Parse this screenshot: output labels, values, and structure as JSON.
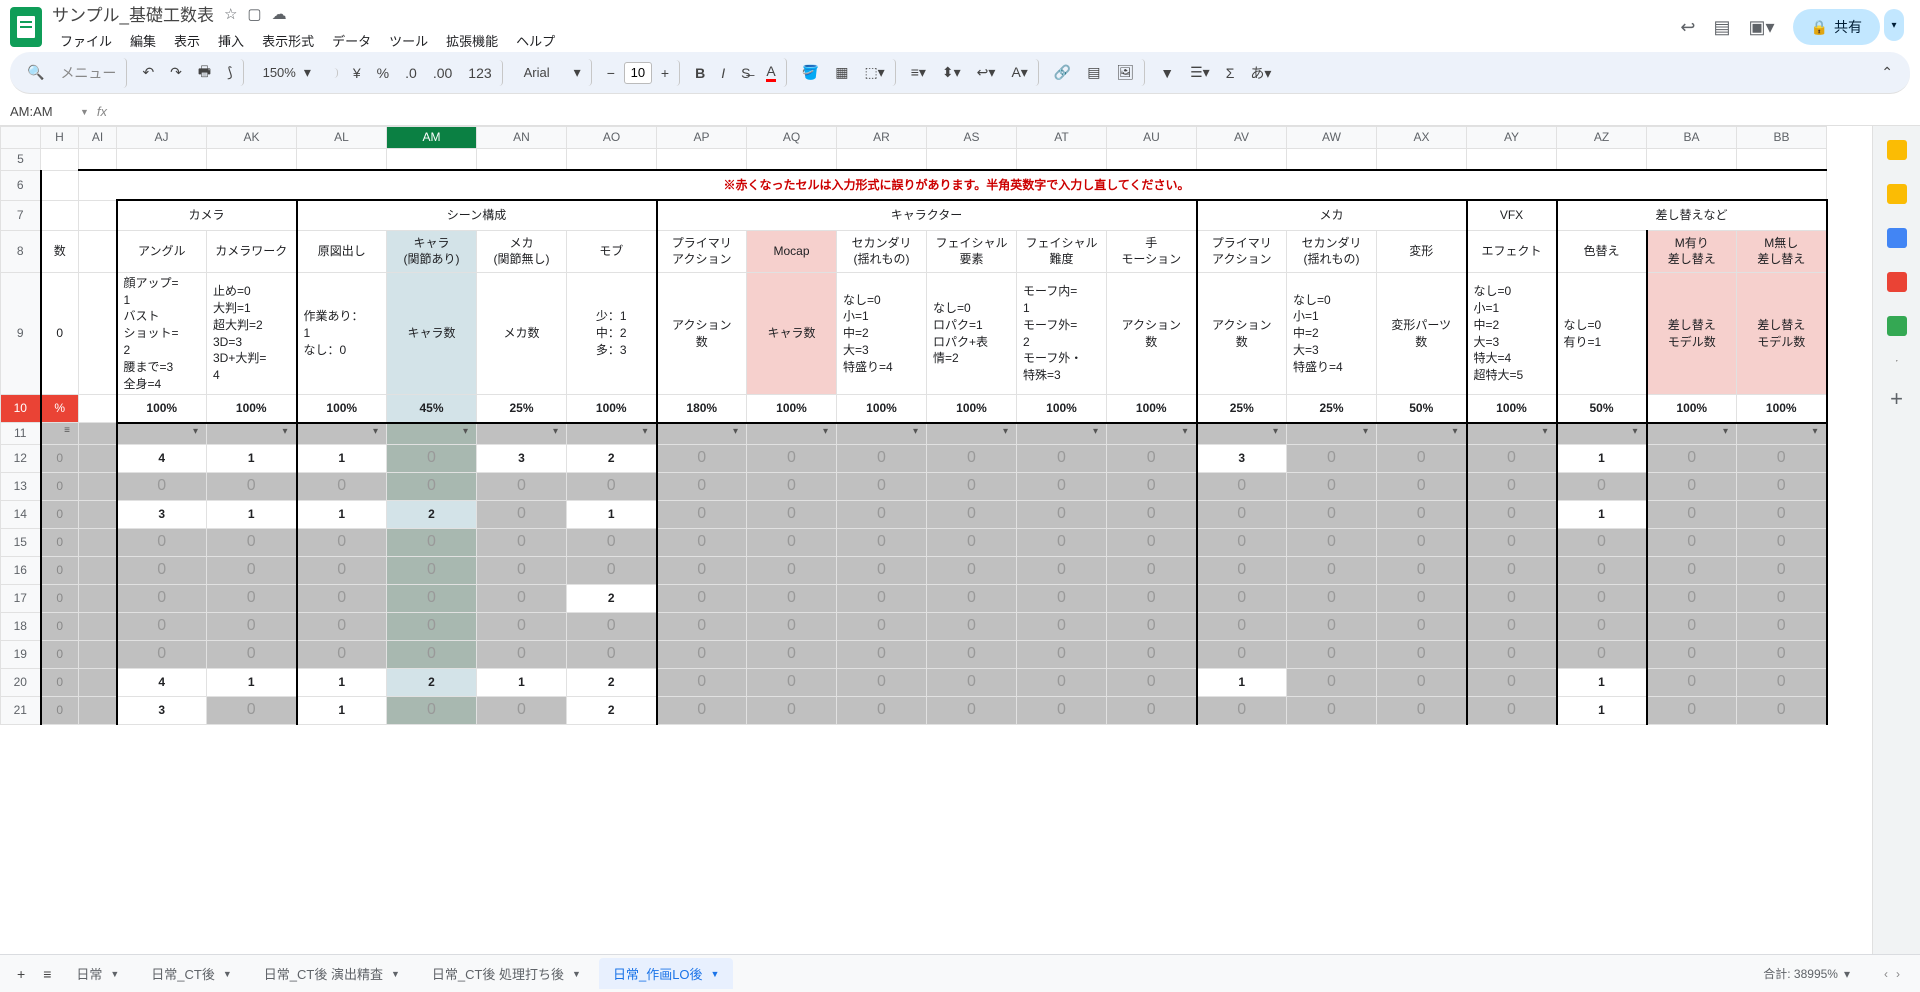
{
  "doc": {
    "title": "サンプル_基礎工数表"
  },
  "menus": [
    "ファイル",
    "編集",
    "表示",
    "挿入",
    "表示形式",
    "データ",
    "ツール",
    "拡張機能",
    "ヘルプ"
  ],
  "toolbar": {
    "menu_label": "メニュー",
    "zoom": "150%",
    "font": "Arial",
    "fontsize": "10"
  },
  "share": {
    "label": "共有"
  },
  "namebox": "AM:AM",
  "cols": [
    "H",
    "AI",
    "AJ",
    "AK",
    "AL",
    "AM",
    "AN",
    "AO",
    "AP",
    "AQ",
    "AR",
    "AS",
    "AT",
    "AU",
    "AV",
    "AW",
    "AX",
    "AY",
    "AZ",
    "BA",
    "BB"
  ],
  "selectedCol": "AM",
  "row5_warn": "※赤くなったセルは入力形式に誤りがあります。半角英数字で入力し直してください。",
  "groups": {
    "camera": "カメラ",
    "scene": "シーン構成",
    "char": "キャラクター",
    "mech": "メカ",
    "vfx": "VFX",
    "swap": "差し替えなど"
  },
  "hdr8": {
    "AJ": "アングル",
    "AK": "カメラワーク",
    "AL": "原図出し",
    "AM": "キャラ\n(関節あり)",
    "AN": "メカ\n(関節無し)",
    "AO": "モブ",
    "AP": "プライマリ\nアクション",
    "AQ": "Mocap",
    "AR": "セカンダリ\n(揺れもの)",
    "AS": "フェイシャル\n要素",
    "AT": "フェイシャル\n難度",
    "AU": "手\nモーション",
    "AV": "プライマリ\nアクション",
    "AW": "セカンダリ\n(揺れもの)",
    "AX": "変形",
    "AY": "エフェクト",
    "AZ": "色替え",
    "BA": "M有り\n差し替え",
    "BB": "M無し\n差し替え"
  },
  "hdr9": {
    "H_suffix": "0",
    "AJ": "顔アップ=\n1\nバスト\nショット=\n2\n腰まで=3\n全身=4",
    "AK": "止め=0\n大判=1\n超大判=2\n3D=3\n3D+大判=\n4",
    "AL": "作業あり：\n1\nなし：0",
    "AM": "キャラ数",
    "AN": "メカ数",
    "AO": "少：1\n中：2\n多：3",
    "AP": "アクション\n数",
    "AQ": "キャラ数",
    "AR": "なし=0\n小=1\n中=2\n大=3\n特盛り=4",
    "AS": "なし=0\nロパク=1\nロパク+表\n情=2",
    "AT": "モーフ内=\n1\nモーフ外=\n2\nモーフ外・\n特殊=3",
    "AU": "アクション\n数",
    "AV": "アクション\n数",
    "AW": "なし=0\n小=1\n中=2\n大=3\n特盛り=4",
    "AX": "変形パーツ\n数",
    "AY": "なし=0\n小=1\n中=2\n大=3\n特大=4\n超特大=5",
    "AZ": "なし=0\n有り=1",
    "BA": "差し替え\nモデル数",
    "BB": "差し替え\nモデル数"
  },
  "pct": {
    "H": "%",
    "AJ": "100%",
    "AK": "100%",
    "AL": "100%",
    "AM": "45%",
    "AN": "25%",
    "AO": "100%",
    "AP": "180%",
    "AQ": "100%",
    "AR": "100%",
    "AS": "100%",
    "AT": "100%",
    "AU": "100%",
    "AV": "25%",
    "AW": "25%",
    "AX": "50%",
    "AY": "100%",
    "AZ": "50%",
    "BA": "100%",
    "BB": "100%"
  },
  "rows": [
    {
      "n": 12,
      "H": "0",
      "white": {
        "AJ": "4",
        "AK": "1",
        "AL": "1",
        "AN": "3",
        "AO": "2",
        "AV": "3",
        "AZ": "1"
      }
    },
    {
      "n": 13,
      "H": "0"
    },
    {
      "n": 14,
      "H": "0",
      "white": {
        "AJ": "3",
        "AK": "1",
        "AL": "1",
        "AM": "2",
        "AO": "1",
        "AZ": "1"
      }
    },
    {
      "n": 15,
      "H": "0"
    },
    {
      "n": 16,
      "H": "0"
    },
    {
      "n": 17,
      "H": "0",
      "white": {
        "AO": "2"
      }
    },
    {
      "n": 18,
      "H": "0"
    },
    {
      "n": 19,
      "H": "0"
    },
    {
      "n": 20,
      "H": "0",
      "white": {
        "AJ": "4",
        "AK": "1",
        "AL": "1",
        "AM": "2",
        "AN": "1",
        "AO": "2",
        "AV": "1",
        "AZ": "1"
      }
    },
    {
      "n": 21,
      "H": "0",
      "white": {
        "AJ": "3",
        "AL": "1",
        "AO": "2",
        "AZ": "1"
      }
    }
  ],
  "tabs": [
    {
      "label": "日常",
      "dd": true
    },
    {
      "label": "日常_CT後",
      "dd": true
    },
    {
      "label": "日常_CT後 演出精査",
      "dd": true
    },
    {
      "label": "日常_CT後 処理打ち後",
      "dd": true
    },
    {
      "label": "日常_作画LO後",
      "dd": true,
      "active": true
    }
  ],
  "status": {
    "label": "合計: 38995%"
  },
  "sidebarColors": [
    "#fbbc04",
    "#fbbc04",
    "#4285f4",
    "#ea4335",
    "#34a853",
    "#5f6368"
  ]
}
